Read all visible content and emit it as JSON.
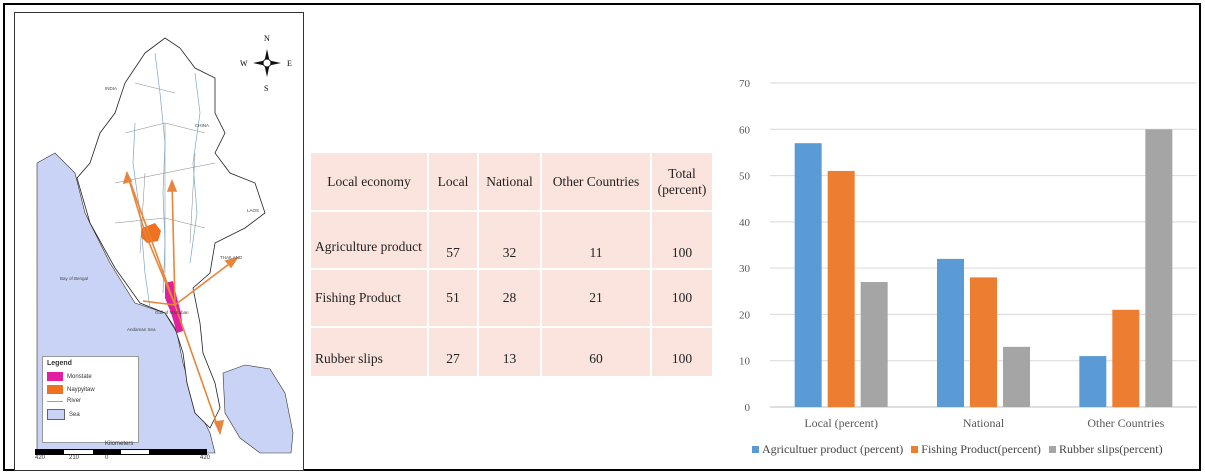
{
  "map": {
    "compass": {
      "n": "N",
      "s": "S",
      "e": "E",
      "w": "W"
    },
    "places": {
      "india": "INDIA",
      "china": "CHINA",
      "laos": "LAOS",
      "thailand": "THAILAND",
      "bay": "Bay of Bengal",
      "gulf": "Gulf of Martaban",
      "andaman": "Andaman Sea"
    },
    "legend": {
      "title": "Legend",
      "items": [
        {
          "label": "Monstate",
          "color": "#e020a0"
        },
        {
          "label": "Naypyitaw",
          "color": "#f07020"
        },
        {
          "label": "River",
          "color": "#7aa7c7"
        },
        {
          "label": "Sea",
          "color": "#c9d3f5"
        }
      ]
    },
    "scale": {
      "title": "Kilometers",
      "ticks": [
        "420",
        "210",
        "0",
        "420"
      ]
    },
    "colors": {
      "land": "#ffffff",
      "sea": "#c9d3f5",
      "arrow": "#e8853a"
    }
  },
  "table": {
    "headers": [
      "Local economy",
      "Local",
      "National",
      "Other Countries",
      "Total (percent)"
    ],
    "rows": [
      [
        "Agriculture product",
        "57",
        "32",
        "11",
        "100"
      ],
      [
        "Fishing Product",
        "51",
        "28",
        "21",
        "100"
      ],
      [
        "Rubber slips",
        "27",
        "13",
        "60",
        "100"
      ]
    ]
  },
  "chart_data": {
    "type": "bar",
    "categories": [
      "Local (percent)",
      "National",
      "Other Countries"
    ],
    "series": [
      {
        "name": "Agricultuer product (percent)",
        "values": [
          57,
          32,
          11
        ],
        "color": "#5b9bd5"
      },
      {
        "name": "Fishing Product(percent)",
        "values": [
          51,
          28,
          21
        ],
        "color": "#ed7d31"
      },
      {
        "name": "Rubber slips(percent)",
        "values": [
          27,
          13,
          60
        ],
        "color": "#a5a5a5"
      }
    ],
    "ylim": [
      0,
      70
    ],
    "yticks": [
      0,
      10,
      20,
      30,
      40,
      50,
      60,
      70
    ],
    "grid": true,
    "legend": "bottom"
  }
}
